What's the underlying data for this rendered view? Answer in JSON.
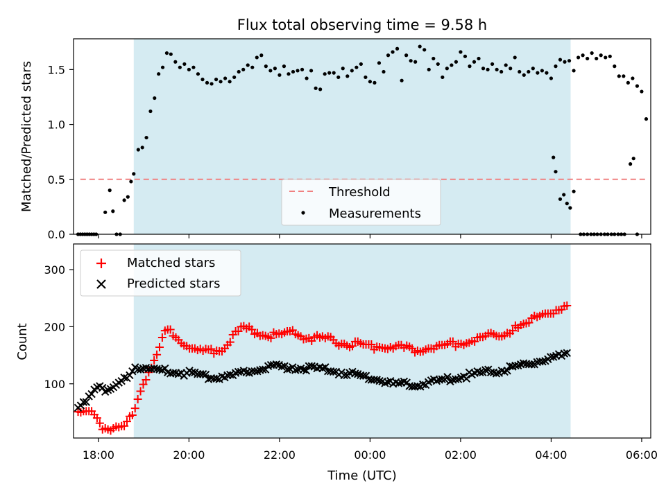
{
  "chart_data": [
    {
      "type": "scatter",
      "title": "Flux total observing time = 9.58 h",
      "ylabel": "Matched/Predicted stars",
      "xlim": [
        -0.55,
        12.2
      ],
      "ylim": [
        0,
        1.78
      ],
      "yticks": [
        0.0,
        0.5,
        1.0,
        1.5
      ],
      "ytick_labels": [
        "0.0",
        "0.5",
        "1.0",
        "1.5"
      ],
      "shaded_span": {
        "x0": 0.78,
        "x1": 10.43,
        "color": "#d5ebf2"
      },
      "threshold": {
        "y": 0.5,
        "x_range": [
          -0.4,
          12.1
        ],
        "color": "#f08080"
      },
      "legend": {
        "position": "lower-center",
        "entries": [
          "Threshold",
          "Measurements"
        ]
      },
      "series": [
        {
          "name": "Measurements",
          "marker": "dot",
          "color": "#000000",
          "points": [
            [
              -0.45,
              0
            ],
            [
              -0.4,
              0
            ],
            [
              -0.35,
              0
            ],
            [
              -0.3,
              0
            ],
            [
              -0.25,
              0
            ],
            [
              -0.2,
              0
            ],
            [
              -0.15,
              0
            ],
            [
              -0.1,
              0
            ],
            [
              -0.05,
              0
            ],
            [
              0.15,
              0.2
            ],
            [
              0.25,
              0.4
            ],
            [
              0.32,
              0.21
            ],
            [
              0.4,
              0
            ],
            [
              0.48,
              0
            ],
            [
              0.57,
              0.31
            ],
            [
              0.65,
              0.34
            ],
            [
              0.72,
              0.48
            ],
            [
              0.78,
              0.55
            ],
            [
              0.88,
              0.77
            ],
            [
              0.97,
              0.79
            ],
            [
              1.06,
              0.88
            ],
            [
              1.15,
              1.12
            ],
            [
              1.24,
              1.24
            ],
            [
              1.33,
              1.46
            ],
            [
              1.42,
              1.52
            ],
            [
              1.51,
              1.65
            ],
            [
              1.6,
              1.64
            ],
            [
              1.7,
              1.57
            ],
            [
              1.8,
              1.52
            ],
            [
              1.9,
              1.55
            ],
            [
              2.0,
              1.5
            ],
            [
              2.1,
              1.52
            ],
            [
              2.2,
              1.46
            ],
            [
              2.3,
              1.41
            ],
            [
              2.4,
              1.38
            ],
            [
              2.5,
              1.37
            ],
            [
              2.6,
              1.41
            ],
            [
              2.7,
              1.39
            ],
            [
              2.8,
              1.42
            ],
            [
              2.9,
              1.39
            ],
            [
              3.0,
              1.43
            ],
            [
              3.1,
              1.48
            ],
            [
              3.2,
              1.5
            ],
            [
              3.3,
              1.54
            ],
            [
              3.4,
              1.52
            ],
            [
              3.5,
              1.61
            ],
            [
              3.6,
              1.63
            ],
            [
              3.7,
              1.53
            ],
            [
              3.8,
              1.49
            ],
            [
              3.9,
              1.51
            ],
            [
              4.0,
              1.45
            ],
            [
              4.1,
              1.53
            ],
            [
              4.2,
              1.46
            ],
            [
              4.3,
              1.48
            ],
            [
              4.4,
              1.49
            ],
            [
              4.5,
              1.5
            ],
            [
              4.6,
              1.42
            ],
            [
              4.7,
              1.49
            ],
            [
              4.8,
              1.33
            ],
            [
              4.9,
              1.32
            ],
            [
              5.0,
              1.46
            ],
            [
              5.1,
              1.47
            ],
            [
              5.2,
              1.47
            ],
            [
              5.3,
              1.43
            ],
            [
              5.4,
              1.51
            ],
            [
              5.5,
              1.44
            ],
            [
              5.6,
              1.49
            ],
            [
              5.7,
              1.52
            ],
            [
              5.8,
              1.55
            ],
            [
              5.9,
              1.43
            ],
            [
              6.0,
              1.39
            ],
            [
              6.1,
              1.38
            ],
            [
              6.2,
              1.56
            ],
            [
              6.3,
              1.48
            ],
            [
              6.4,
              1.63
            ],
            [
              6.5,
              1.66
            ],
            [
              6.6,
              1.69
            ],
            [
              6.7,
              1.4
            ],
            [
              6.8,
              1.63
            ],
            [
              6.9,
              1.58
            ],
            [
              7.0,
              1.57
            ],
            [
              7.1,
              1.71
            ],
            [
              7.2,
              1.68
            ],
            [
              7.3,
              1.5
            ],
            [
              7.4,
              1.6
            ],
            [
              7.5,
              1.55
            ],
            [
              7.6,
              1.43
            ],
            [
              7.7,
              1.51
            ],
            [
              7.8,
              1.54
            ],
            [
              7.9,
              1.57
            ],
            [
              8.0,
              1.66
            ],
            [
              8.1,
              1.62
            ],
            [
              8.2,
              1.53
            ],
            [
              8.3,
              1.57
            ],
            [
              8.4,
              1.6
            ],
            [
              8.5,
              1.51
            ],
            [
              8.6,
              1.5
            ],
            [
              8.7,
              1.55
            ],
            [
              8.8,
              1.5
            ],
            [
              8.9,
              1.48
            ],
            [
              9.0,
              1.54
            ],
            [
              9.1,
              1.51
            ],
            [
              9.2,
              1.61
            ],
            [
              9.3,
              1.48
            ],
            [
              9.4,
              1.45
            ],
            [
              9.5,
              1.48
            ],
            [
              9.6,
              1.51
            ],
            [
              9.7,
              1.47
            ],
            [
              9.8,
              1.49
            ],
            [
              9.9,
              1.47
            ],
            [
              10.0,
              1.42
            ],
            [
              10.1,
              1.53
            ],
            [
              10.2,
              1.59
            ],
            [
              10.3,
              1.57
            ],
            [
              10.4,
              1.58
            ],
            [
              10.5,
              1.49
            ],
            [
              10.6,
              1.61
            ],
            [
              10.7,
              1.63
            ],
            [
              10.8,
              1.6
            ],
            [
              10.9,
              1.65
            ],
            [
              11.0,
              1.6
            ],
            [
              11.1,
              1.63
            ],
            [
              11.2,
              1.61
            ],
            [
              11.3,
              1.62
            ],
            [
              11.4,
              1.53
            ],
            [
              11.5,
              1.44
            ],
            [
              11.6,
              1.44
            ],
            [
              11.7,
              1.38
            ],
            [
              11.8,
              1.42
            ],
            [
              11.9,
              1.35
            ],
            [
              12.0,
              1.3
            ],
            [
              12.1,
              1.05
            ],
            [
              10.05,
              0.7
            ],
            [
              10.1,
              0.57
            ],
            [
              10.2,
              0.32
            ],
            [
              10.28,
              0.36
            ],
            [
              10.35,
              0.28
            ],
            [
              10.42,
              0.24
            ],
            [
              10.5,
              0.39
            ],
            [
              10.65,
              0
            ],
            [
              10.72,
              0
            ],
            [
              10.8,
              0
            ],
            [
              10.88,
              0
            ],
            [
              10.95,
              0
            ],
            [
              11.02,
              0
            ],
            [
              11.1,
              0
            ],
            [
              11.18,
              0
            ],
            [
              11.25,
              0
            ],
            [
              11.33,
              0
            ],
            [
              11.4,
              0
            ],
            [
              11.48,
              0
            ],
            [
              11.55,
              0
            ],
            [
              11.62,
              0
            ],
            [
              11.75,
              0.64
            ],
            [
              11.82,
              0.69
            ],
            [
              11.9,
              0
            ]
          ]
        }
      ]
    },
    {
      "type": "scatter",
      "xlabel": "Time (UTC)",
      "ylabel": "Count",
      "xlim": [
        -0.55,
        12.2
      ],
      "ylim": [
        5,
        345
      ],
      "yticks": [
        100,
        200,
        300
      ],
      "ytick_labels": [
        "100",
        "200",
        "300"
      ],
      "xticks": [
        0,
        2,
        4,
        6,
        8,
        10,
        12
      ],
      "xtick_labels": [
        "18:00",
        "20:00",
        "22:00",
        "00:00",
        "02:00",
        "04:00",
        "06:00"
      ],
      "shaded_span": {
        "x0": 0.78,
        "x1": 10.43,
        "color": "#d5ebf2"
      },
      "legend": {
        "position": "upper-left",
        "entries": [
          "Matched stars",
          "Predicted stars"
        ]
      },
      "series": [
        {
          "name": "Matched stars",
          "marker": "plus",
          "color": "#ff0000",
          "points": []
        },
        {
          "name": "Predicted stars",
          "marker": "x",
          "color": "#000000",
          "points": []
        }
      ]
    }
  ]
}
